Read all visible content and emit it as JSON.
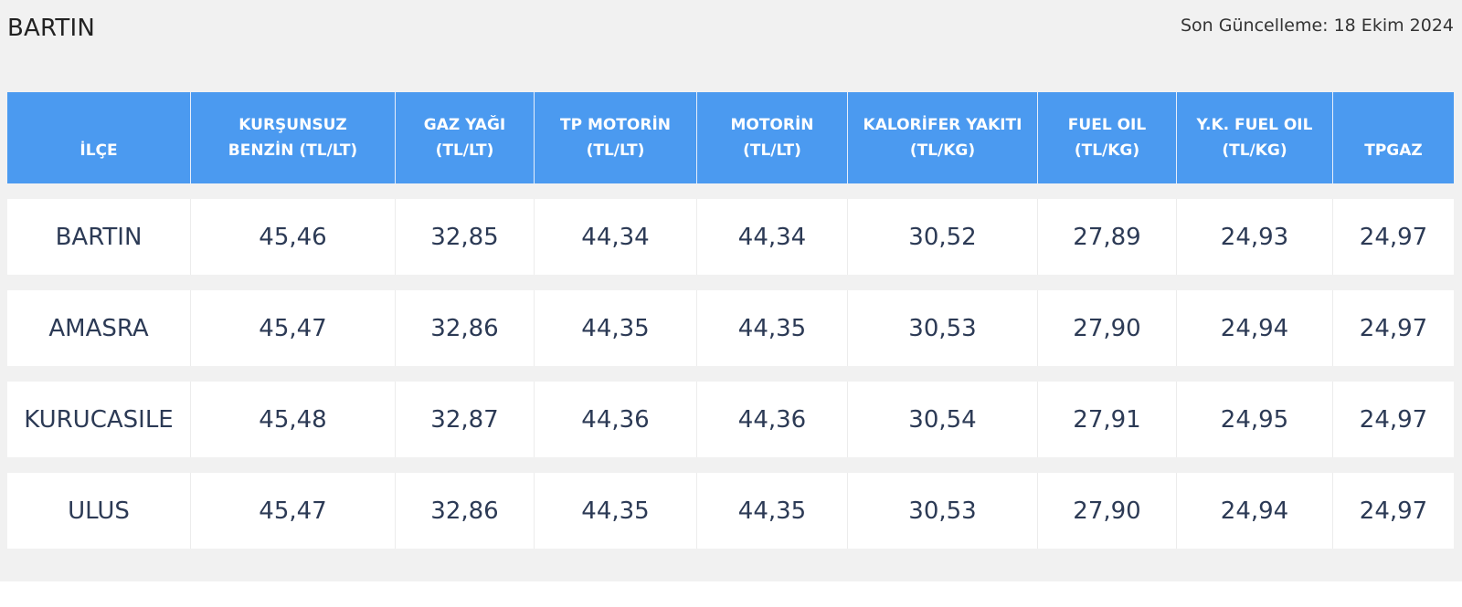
{
  "header": {
    "city": "BARTIN",
    "last_updated": "Son Güncelleme: 18 Ekim 2024"
  },
  "table": {
    "columns": [
      "İLÇE",
      "KURŞUNSUZ\nBENZİN (TL/LT)",
      "GAZ YAĞI\n(TL/LT)",
      "TP MOTORİN\n(TL/LT)",
      "MOTORİN\n(TL/LT)",
      "KALORİFER YAKITI\n(TL/KG)",
      "FUEL OIL\n(TL/KG)",
      "Y.K. FUEL OIL\n(TL/KG)",
      "TPGAZ"
    ],
    "rows": [
      [
        "BARTIN",
        "45,46",
        "32,85",
        "44,34",
        "44,34",
        "30,52",
        "27,89",
        "24,93",
        "24,97"
      ],
      [
        "AMASRA",
        "45,47",
        "32,86",
        "44,35",
        "44,35",
        "30,53",
        "27,90",
        "24,94",
        "24,97"
      ],
      [
        "KURUCASILE",
        "45,48",
        "32,87",
        "44,36",
        "44,36",
        "30,54",
        "27,91",
        "24,95",
        "24,97"
      ],
      [
        "ULUS",
        "45,47",
        "32,86",
        "44,35",
        "44,35",
        "30,53",
        "27,90",
        "24,94",
        "24,97"
      ]
    ]
  },
  "colors": {
    "header_bg": "#4b9af0",
    "page_bg": "#f1f1f1",
    "cell_text": "#2c3a55"
  }
}
